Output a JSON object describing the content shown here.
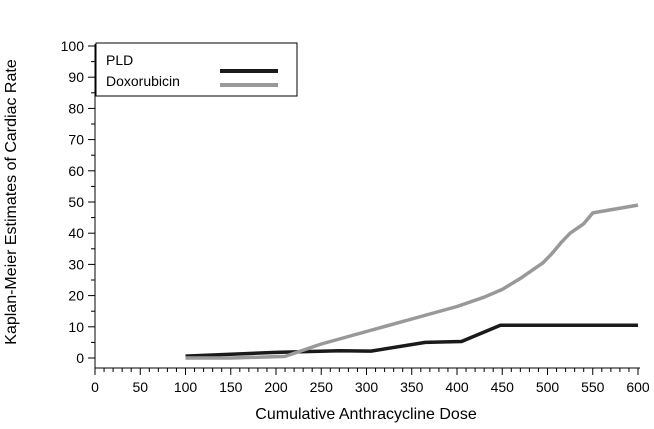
{
  "chart_data": {
    "type": "line",
    "title": "",
    "xlabel": "Cumulative Anthracycline Dose",
    "ylabel": "Kaplan-Meier Estimates of Cardiac Rate",
    "xlim": [
      0,
      600
    ],
    "ylim": [
      0,
      100
    ],
    "xticks": [
      0,
      50,
      100,
      150,
      200,
      250,
      300,
      350,
      400,
      450,
      500,
      550,
      600
    ],
    "yticks": [
      0,
      10,
      20,
      30,
      40,
      50,
      60,
      70,
      80,
      90,
      100
    ],
    "grid": false,
    "legend_position": "top-left",
    "series": [
      {
        "name": "PLD",
        "color": "#1a1a1a",
        "x": [
          100,
          200,
          270,
          305,
          365,
          405,
          448,
          600
        ],
        "y": [
          0.6,
          1.8,
          2.3,
          2.2,
          5.0,
          5.3,
          10.5,
          10.5
        ]
      },
      {
        "name": "Doxorubicin",
        "color": "#999999",
        "x": [
          100,
          150,
          210,
          250,
          300,
          350,
          400,
          430,
          450,
          470,
          485,
          495,
          505,
          515,
          525,
          540,
          550,
          600
        ],
        "y": [
          0,
          0,
          0.5,
          4.5,
          8.5,
          12.5,
          16.5,
          19.5,
          22,
          25.5,
          28.5,
          30.5,
          33.5,
          37,
          40,
          43,
          46.5,
          49
        ]
      }
    ]
  }
}
